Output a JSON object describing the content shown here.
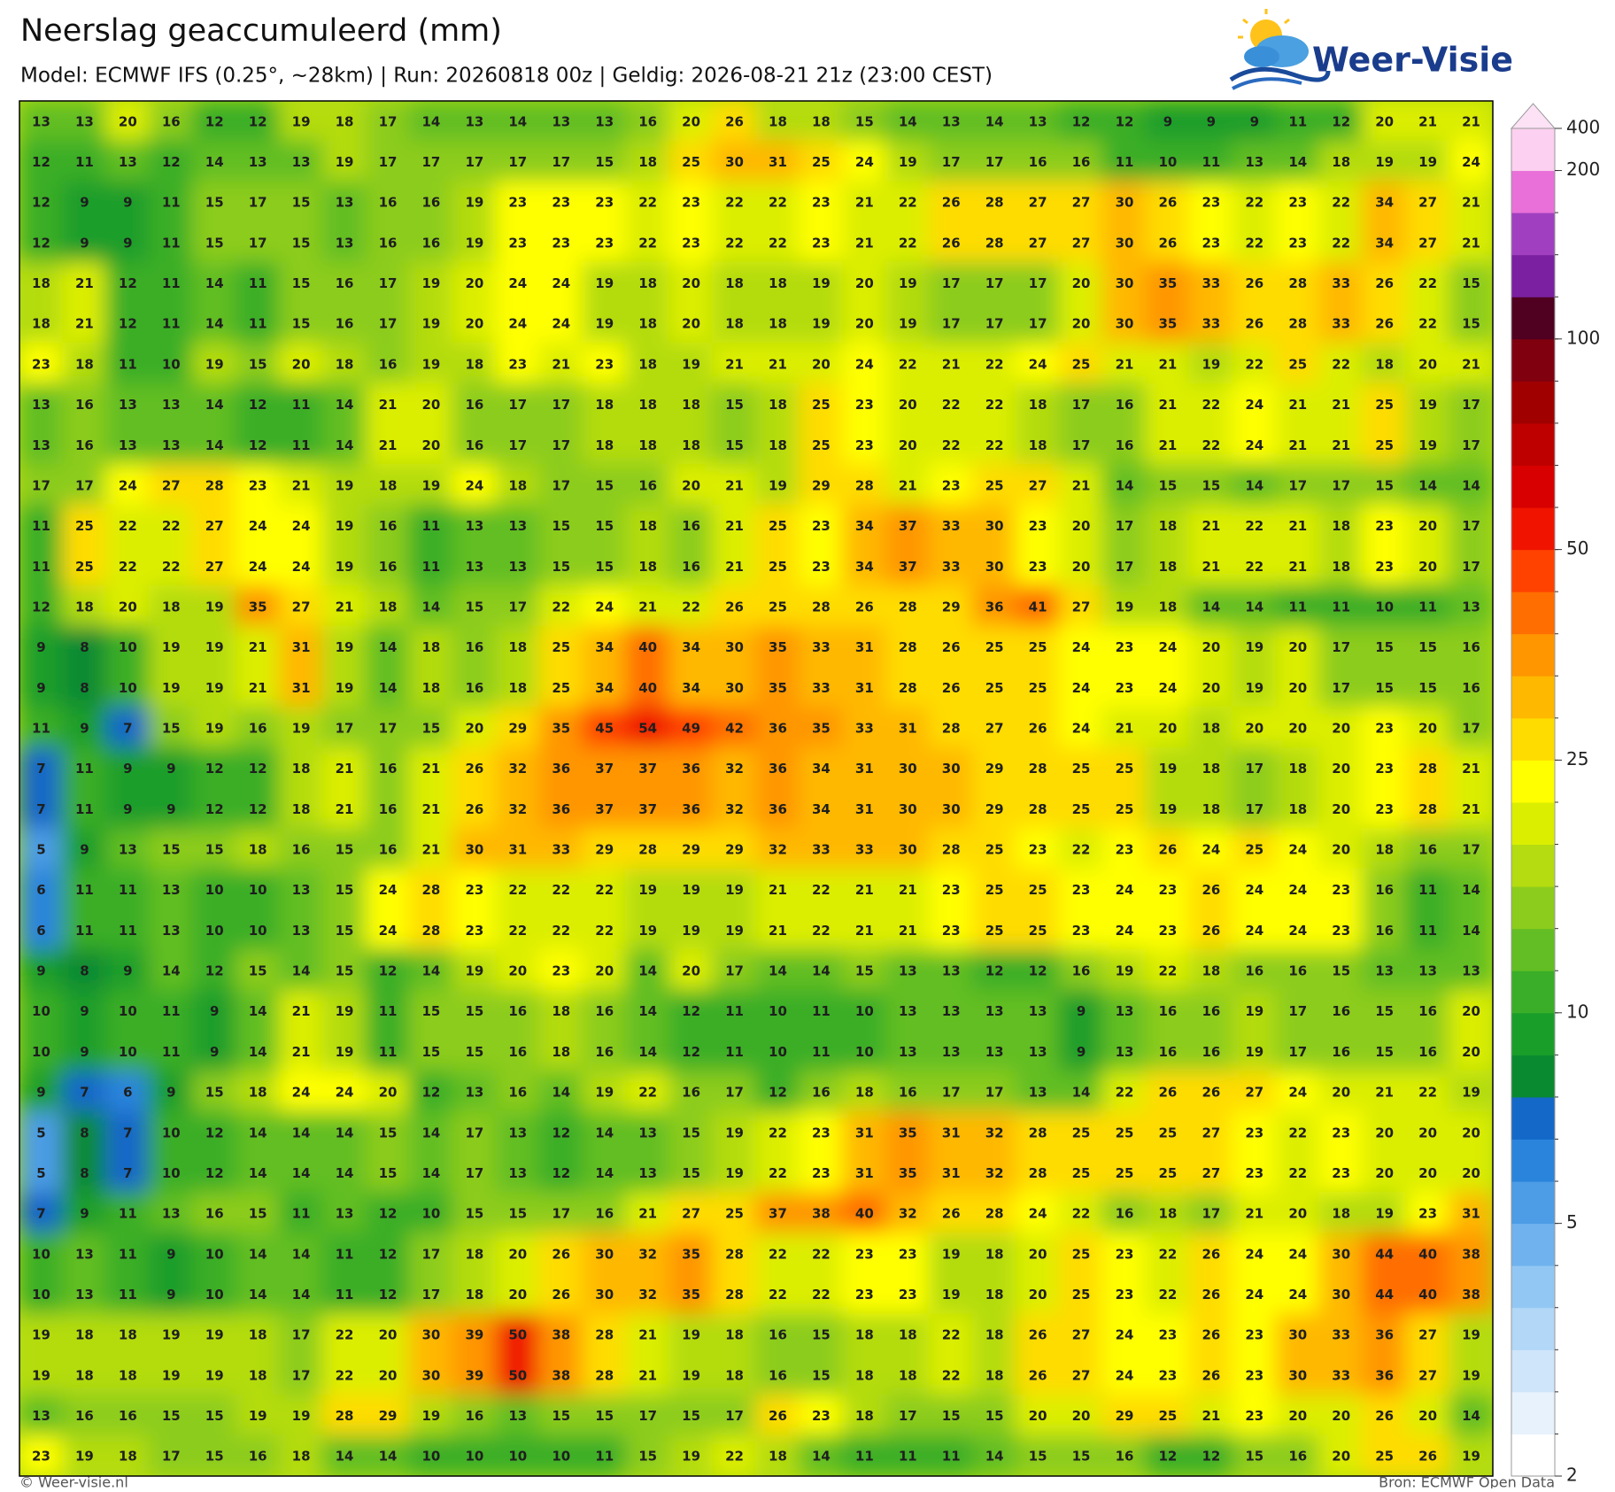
{
  "title": "Neerslag geaccumuleerd (mm)",
  "subtitle": "Model: ECMWF IFS (0.25°, ~28km)  |  Run: 20260818 00z  |  Geldig: 2026-08-21 21z (23:00 CEST)",
  "logo": "Weer-Visie",
  "footer_left": "© Weer-visie.nl",
  "footer_right": "Bron: ECMWF Open Data",
  "grid": [
    [
      13,
      13,
      20,
      16,
      12,
      12,
      19,
      18,
      17,
      14,
      13,
      14,
      13,
      13,
      16,
      20,
      26,
      18,
      18,
      15,
      14,
      13,
      14,
      13,
      12,
      12,
      9,
      9,
      9,
      11,
      12,
      20,
      21,
      21
    ],
    [
      12,
      11,
      13,
      12,
      14,
      13,
      13,
      19,
      17,
      17,
      17,
      17,
      17,
      15,
      18,
      25,
      30,
      31,
      25,
      24,
      19,
      17,
      17,
      16,
      16,
      11,
      10,
      11,
      13,
      14,
      18,
      19,
      19,
      24
    ],
    [
      12,
      9,
      9,
      11,
      15,
      17,
      15,
      13,
      16,
      16,
      19,
      23,
      23,
      23,
      22,
      23,
      22,
      22,
      23,
      21,
      22,
      26,
      28,
      27,
      27,
      30,
      26,
      23,
      22,
      23,
      22,
      34,
      27,
      21
    ],
    [
      12,
      9,
      9,
      11,
      15,
      17,
      15,
      13,
      16,
      16,
      19,
      23,
      23,
      23,
      22,
      23,
      22,
      22,
      23,
      21,
      22,
      26,
      28,
      27,
      27,
      30,
      26,
      23,
      22,
      23,
      22,
      34,
      27,
      21
    ],
    [
      18,
      21,
      12,
      11,
      14,
      11,
      15,
      16,
      17,
      19,
      20,
      24,
      24,
      19,
      18,
      20,
      18,
      18,
      19,
      20,
      19,
      17,
      17,
      17,
      20,
      30,
      35,
      33,
      26,
      28,
      33,
      26,
      22,
      15
    ],
    [
      18,
      21,
      12,
      11,
      14,
      11,
      15,
      16,
      17,
      19,
      20,
      24,
      24,
      19,
      18,
      20,
      18,
      18,
      19,
      20,
      19,
      17,
      17,
      17,
      20,
      30,
      35,
      33,
      26,
      28,
      33,
      26,
      22,
      15
    ],
    [
      23,
      18,
      11,
      10,
      19,
      15,
      20,
      18,
      16,
      19,
      18,
      23,
      21,
      23,
      18,
      19,
      21,
      21,
      20,
      24,
      22,
      21,
      22,
      24,
      25,
      21,
      21,
      19,
      22,
      25,
      22,
      18,
      20,
      21
    ],
    [
      13,
      16,
      13,
      13,
      14,
      12,
      11,
      14,
      21,
      20,
      16,
      17,
      17,
      18,
      18,
      18,
      15,
      18,
      25,
      23,
      20,
      22,
      22,
      18,
      17,
      16,
      21,
      22,
      24,
      21,
      21,
      25,
      19,
      17
    ],
    [
      13,
      16,
      13,
      13,
      14,
      12,
      11,
      14,
      21,
      20,
      16,
      17,
      17,
      18,
      18,
      18,
      15,
      18,
      25,
      23,
      20,
      22,
      22,
      18,
      17,
      16,
      21,
      22,
      24,
      21,
      21,
      25,
      19,
      17
    ],
    [
      17,
      17,
      24,
      27,
      28,
      23,
      21,
      19,
      18,
      19,
      24,
      18,
      17,
      15,
      16,
      20,
      21,
      19,
      29,
      28,
      21,
      23,
      25,
      27,
      21,
      14,
      15,
      15,
      14,
      17,
      17,
      15,
      14,
      14
    ],
    [
      11,
      25,
      22,
      22,
      27,
      24,
      24,
      19,
      16,
      11,
      13,
      13,
      15,
      15,
      18,
      16,
      21,
      25,
      23,
      34,
      37,
      33,
      30,
      23,
      20,
      17,
      18,
      21,
      22,
      21,
      18,
      23,
      20,
      17
    ],
    [
      11,
      25,
      22,
      22,
      27,
      24,
      24,
      19,
      16,
      11,
      13,
      13,
      15,
      15,
      18,
      16,
      21,
      25,
      23,
      34,
      37,
      33,
      30,
      23,
      20,
      17,
      18,
      21,
      22,
      21,
      18,
      23,
      20,
      17
    ],
    [
      12,
      18,
      20,
      18,
      19,
      35,
      27,
      21,
      18,
      14,
      15,
      17,
      22,
      24,
      21,
      22,
      26,
      25,
      28,
      26,
      28,
      29,
      36,
      41,
      27,
      19,
      18,
      14,
      14,
      11,
      11,
      10,
      11,
      13
    ],
    [
      9,
      8,
      10,
      19,
      19,
      21,
      31,
      19,
      14,
      18,
      16,
      18,
      25,
      34,
      40,
      34,
      30,
      35,
      33,
      31,
      28,
      26,
      25,
      25,
      24,
      23,
      24,
      20,
      19,
      20,
      17,
      15,
      15,
      16
    ],
    [
      9,
      8,
      10,
      19,
      19,
      21,
      31,
      19,
      14,
      18,
      16,
      18,
      25,
      34,
      40,
      34,
      30,
      35,
      33,
      31,
      28,
      26,
      25,
      25,
      24,
      23,
      24,
      20,
      19,
      20,
      17,
      15,
      15,
      16
    ],
    [
      11,
      9,
      7,
      15,
      19,
      16,
      19,
      17,
      17,
      15,
      20,
      29,
      35,
      45,
      54,
      49,
      42,
      36,
      35,
      33,
      31,
      28,
      27,
      26,
      24,
      21,
      20,
      18,
      20,
      20,
      20,
      23,
      20,
      17
    ],
    [
      7,
      11,
      9,
      9,
      12,
      12,
      18,
      21,
      16,
      21,
      26,
      32,
      36,
      37,
      37,
      36,
      32,
      36,
      34,
      31,
      30,
      30,
      29,
      28,
      25,
      25,
      19,
      18,
      17,
      18,
      20,
      23,
      28,
      21
    ],
    [
      7,
      11,
      9,
      9,
      12,
      12,
      18,
      21,
      16,
      21,
      26,
      32,
      36,
      37,
      37,
      36,
      32,
      36,
      34,
      31,
      30,
      30,
      29,
      28,
      25,
      25,
      19,
      18,
      17,
      18,
      20,
      23,
      28,
      21
    ],
    [
      5,
      9,
      13,
      15,
      15,
      18,
      16,
      15,
      16,
      21,
      30,
      31,
      33,
      29,
      28,
      29,
      29,
      32,
      33,
      33,
      30,
      28,
      25,
      23,
      22,
      23,
      26,
      24,
      25,
      24,
      20,
      18,
      16,
      17
    ],
    [
      6,
      11,
      11,
      13,
      10,
      10,
      13,
      15,
      24,
      28,
      23,
      22,
      22,
      22,
      19,
      19,
      19,
      21,
      22,
      21,
      21,
      23,
      25,
      25,
      23,
      24,
      23,
      26,
      24,
      24,
      23,
      16,
      11,
      14
    ],
    [
      6,
      11,
      11,
      13,
      10,
      10,
      13,
      15,
      24,
      28,
      23,
      22,
      22,
      22,
      19,
      19,
      19,
      21,
      22,
      21,
      21,
      23,
      25,
      25,
      23,
      24,
      23,
      26,
      24,
      24,
      23,
      16,
      11,
      14
    ],
    [
      9,
      8,
      9,
      14,
      12,
      15,
      14,
      15,
      12,
      14,
      19,
      20,
      23,
      20,
      14,
      20,
      17,
      14,
      14,
      15,
      13,
      13,
      12,
      12,
      16,
      19,
      22,
      18,
      16,
      16,
      15,
      13,
      13,
      13
    ],
    [
      10,
      9,
      10,
      11,
      9,
      14,
      21,
      19,
      11,
      15,
      15,
      16,
      18,
      16,
      14,
      12,
      11,
      10,
      11,
      10,
      13,
      13,
      13,
      13,
      9,
      13,
      16,
      16,
      19,
      17,
      16,
      15,
      16,
      20
    ],
    [
      10,
      9,
      10,
      11,
      9,
      14,
      21,
      19,
      11,
      15,
      15,
      16,
      18,
      16,
      14,
      12,
      11,
      10,
      11,
      10,
      13,
      13,
      13,
      13,
      9,
      13,
      16,
      16,
      19,
      17,
      16,
      15,
      16,
      20
    ],
    [
      9,
      7,
      6,
      9,
      15,
      18,
      24,
      24,
      20,
      12,
      13,
      16,
      14,
      19,
      22,
      16,
      17,
      12,
      16,
      18,
      16,
      17,
      17,
      13,
      14,
      22,
      26,
      26,
      27,
      24,
      20,
      21,
      22,
      19
    ],
    [
      5,
      8,
      7,
      10,
      12,
      14,
      14,
      14,
      15,
      14,
      17,
      13,
      12,
      14,
      13,
      15,
      19,
      22,
      23,
      31,
      35,
      31,
      32,
      28,
      25,
      25,
      25,
      27,
      23,
      22,
      23,
      20,
      20,
      20
    ],
    [
      5,
      8,
      7,
      10,
      12,
      14,
      14,
      14,
      15,
      14,
      17,
      13,
      12,
      14,
      13,
      15,
      19,
      22,
      23,
      31,
      35,
      31,
      32,
      28,
      25,
      25,
      25,
      27,
      23,
      22,
      23,
      20,
      20,
      20
    ],
    [
      7,
      9,
      11,
      13,
      16,
      15,
      11,
      13,
      12,
      10,
      15,
      15,
      17,
      16,
      21,
      27,
      25,
      37,
      38,
      40,
      32,
      26,
      28,
      24,
      22,
      16,
      18,
      17,
      21,
      20,
      18,
      19,
      23,
      31
    ],
    [
      10,
      13,
      11,
      9,
      10,
      14,
      14,
      11,
      12,
      17,
      18,
      20,
      26,
      30,
      32,
      35,
      28,
      22,
      22,
      23,
      23,
      19,
      18,
      20,
      25,
      23,
      22,
      26,
      24,
      24,
      30,
      44,
      40,
      38
    ],
    [
      10,
      13,
      11,
      9,
      10,
      14,
      14,
      11,
      12,
      17,
      18,
      20,
      26,
      30,
      32,
      35,
      28,
      22,
      22,
      23,
      23,
      19,
      18,
      20,
      25,
      23,
      22,
      26,
      24,
      24,
      30,
      44,
      40,
      38
    ],
    [
      19,
      18,
      18,
      19,
      19,
      18,
      17,
      22,
      20,
      30,
      39,
      50,
      38,
      28,
      21,
      19,
      18,
      16,
      15,
      18,
      18,
      22,
      18,
      26,
      27,
      24,
      23,
      26,
      23,
      30,
      33,
      36,
      27,
      19
    ],
    [
      19,
      18,
      18,
      19,
      19,
      18,
      17,
      22,
      20,
      30,
      39,
      50,
      38,
      28,
      21,
      19,
      18,
      16,
      15,
      18,
      18,
      22,
      18,
      26,
      27,
      24,
      23,
      26,
      23,
      30,
      33,
      36,
      27,
      19
    ],
    [
      13,
      16,
      16,
      15,
      15,
      19,
      19,
      28,
      29,
      19,
      16,
      13,
      15,
      15,
      17,
      15,
      17,
      26,
      23,
      18,
      17,
      15,
      15,
      20,
      20,
      29,
      25,
      21,
      23,
      20,
      20,
      26,
      20,
      14
    ],
    [
      23,
      19,
      18,
      17,
      15,
      16,
      18,
      14,
      14,
      10,
      10,
      10,
      10,
      11,
      15,
      19,
      22,
      18,
      14,
      11,
      11,
      11,
      14,
      15,
      15,
      16,
      12,
      12,
      15,
      16,
      20,
      25,
      26,
      19
    ]
  ],
  "colorbar": {
    "levels": [
      2,
      2.5,
      3,
      3.5,
      4,
      4.5,
      5,
      6,
      7,
      8,
      9,
      10,
      12.5,
      15,
      17.5,
      20,
      22.5,
      25,
      30,
      35,
      40,
      45,
      50,
      60,
      70,
      80,
      90,
      100,
      125,
      150,
      175,
      200,
      400
    ],
    "colors": [
      "#ffffff",
      "#e8f2fc",
      "#cfe5fa",
      "#b2d7f7",
      "#93c7f3",
      "#70b2ee",
      "#4c9ce6",
      "#2a84dc",
      "#1468c8",
      "#0a8a30",
      "#1a9e2a",
      "#3aae28",
      "#62be24",
      "#8ccc1c",
      "#b4dc10",
      "#dcee00",
      "#ffff00",
      "#ffdc00",
      "#ffb800",
      "#ff9600",
      "#ff6e00",
      "#ff4200",
      "#f01400",
      "#d80000",
      "#be0000",
      "#a00000",
      "#800010",
      "#500020",
      "#7a20a0",
      "#a040c0",
      "#e870d8",
      "#fcd0f0"
    ],
    "extend_color": "#fde2f6",
    "ticks": [
      2,
      5,
      10,
      25,
      50,
      100,
      200,
      400
    ]
  }
}
